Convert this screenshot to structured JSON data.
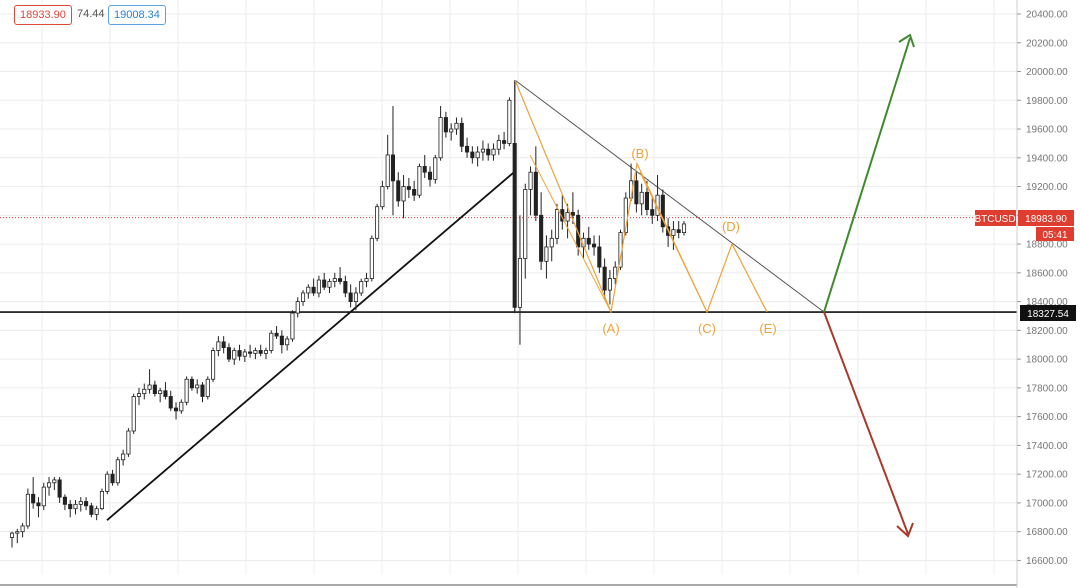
{
  "header": {
    "bid": "18933.90",
    "spread": "74.44",
    "ask": "19008.34"
  },
  "price_scale": {
    "ticks": [
      "20400.00",
      "20200.00",
      "20000.00",
      "19800.00",
      "19600.00",
      "19400.00",
      "19200.00",
      "19000.00",
      "18800.00",
      "18600.00",
      "18400.00",
      "18200.00",
      "18000.00",
      "17800.00",
      "17600.00",
      "17400.00",
      "17200.00",
      "17000.00",
      "16800.00",
      "16600.00"
    ],
    "symbol_tag": "BTCUSD",
    "current_price": "18983.90",
    "countdown": "05:41",
    "level_label": "18327.54"
  },
  "colors": {
    "accent_red": "#df3d2f",
    "wave_orange": "#eea23a",
    "up_arrow": "#3f8a2d",
    "down_arrow": "#a83a2a",
    "line_black": "#111111"
  },
  "chart_data": {
    "type": "candlestick",
    "symbol": "BTCUSD",
    "ylim": [
      16600,
      20400
    ],
    "current_price": 18983.9,
    "horizontal_level": 18327.54,
    "wave_labels": [
      "(A)",
      "(B)",
      "(C)",
      "(D)",
      "(E)"
    ],
    "candles_ohlc": [
      [
        16760,
        16800,
        16690,
        16790
      ],
      [
        16790,
        16820,
        16720,
        16800
      ],
      [
        16800,
        16860,
        16760,
        16840
      ],
      [
        16840,
        17100,
        16820,
        17060
      ],
      [
        17060,
        17180,
        16960,
        17000
      ],
      [
        17000,
        17040,
        16900,
        16980
      ],
      [
        16980,
        17140,
        16950,
        17110
      ],
      [
        17110,
        17180,
        17050,
        17140
      ],
      [
        17140,
        17180,
        17090,
        17160
      ],
      [
        17160,
        17180,
        17000,
        17040
      ],
      [
        17040,
        17060,
        16950,
        16990
      ],
      [
        16990,
        17020,
        16900,
        16960
      ],
      [
        16960,
        17020,
        16920,
        16990
      ],
      [
        16990,
        17040,
        16940,
        17010
      ],
      [
        17010,
        17040,
        16950,
        16980
      ],
      [
        16980,
        17000,
        16900,
        16920
      ],
      [
        16920,
        16980,
        16880,
        16960
      ],
      [
        16960,
        17100,
        16950,
        17080
      ],
      [
        17080,
        17220,
        17060,
        17200
      ],
      [
        17200,
        17230,
        17120,
        17140
      ],
      [
        17140,
        17320,
        17120,
        17300
      ],
      [
        17300,
        17370,
        17260,
        17340
      ],
      [
        17340,
        17520,
        17320,
        17500
      ],
      [
        17500,
        17760,
        17480,
        17740
      ],
      [
        17740,
        17800,
        17680,
        17760
      ],
      [
        17760,
        17830,
        17720,
        17790
      ],
      [
        17790,
        17930,
        17760,
        17820
      ],
      [
        17820,
        17850,
        17740,
        17760
      ],
      [
        17760,
        17800,
        17700,
        17780
      ],
      [
        17780,
        17840,
        17720,
        17740
      ],
      [
        17740,
        17780,
        17640,
        17660
      ],
      [
        17660,
        17700,
        17580,
        17640
      ],
      [
        17640,
        17720,
        17620,
        17700
      ],
      [
        17700,
        17880,
        17680,
        17860
      ],
      [
        17860,
        17880,
        17780,
        17800
      ],
      [
        17800,
        17860,
        17760,
        17820
      ],
      [
        17820,
        17840,
        17700,
        17740
      ],
      [
        17740,
        17880,
        17720,
        17860
      ],
      [
        17860,
        18080,
        17840,
        18060
      ],
      [
        18060,
        18160,
        18020,
        18120
      ],
      [
        18120,
        18160,
        18040,
        18080
      ],
      [
        18080,
        18110,
        17980,
        18000
      ],
      [
        18000,
        18080,
        17960,
        18060
      ],
      [
        18060,
        18100,
        17990,
        18020
      ],
      [
        18020,
        18070,
        17980,
        18050
      ],
      [
        18050,
        18100,
        18010,
        18040
      ],
      [
        18040,
        18080,
        18000,
        18060
      ],
      [
        18060,
        18100,
        18020,
        18040
      ],
      [
        18040,
        18080,
        18000,
        18060
      ],
      [
        18060,
        18200,
        18040,
        18180
      ],
      [
        18180,
        18230,
        18140,
        18160
      ],
      [
        18160,
        18200,
        18040,
        18100
      ],
      [
        18100,
        18160,
        18060,
        18140
      ],
      [
        18140,
        18340,
        18120,
        18320
      ],
      [
        18320,
        18430,
        18290,
        18400
      ],
      [
        18400,
        18480,
        18370,
        18460
      ],
      [
        18460,
        18520,
        18420,
        18500
      ],
      [
        18500,
        18560,
        18440,
        18460
      ],
      [
        18460,
        18580,
        18430,
        18550
      ],
      [
        18550,
        18600,
        18480,
        18500
      ],
      [
        18500,
        18560,
        18460,
        18540
      ],
      [
        18540,
        18600,
        18500,
        18560
      ],
      [
        18560,
        18640,
        18520,
        18540
      ],
      [
        18540,
        18580,
        18430,
        18460
      ],
      [
        18460,
        18520,
        18360,
        18400
      ],
      [
        18400,
        18500,
        18340,
        18460
      ],
      [
        18460,
        18560,
        18440,
        18540
      ],
      [
        18540,
        18600,
        18500,
        18560
      ],
      [
        18560,
        18860,
        18540,
        18840
      ],
      [
        18840,
        19080,
        18820,
        19060
      ],
      [
        19060,
        19240,
        19040,
        19200
      ],
      [
        19200,
        19560,
        19180,
        19420
      ],
      [
        19420,
        19760,
        19000,
        19240
      ],
      [
        19240,
        19300,
        19060,
        19100
      ],
      [
        19100,
        19280,
        18980,
        19200
      ],
      [
        19200,
        19260,
        19120,
        19180
      ],
      [
        19180,
        19240,
        19100,
        19140
      ],
      [
        19140,
        19360,
        19120,
        19340
      ],
      [
        19340,
        19420,
        19260,
        19300
      ],
      [
        19300,
        19340,
        19200,
        19250
      ],
      [
        19250,
        19420,
        19220,
        19400
      ],
      [
        19400,
        19760,
        19380,
        19680
      ],
      [
        19680,
        19720,
        19540,
        19580
      ],
      [
        19580,
        19640,
        19520,
        19600
      ],
      [
        19600,
        19680,
        19560,
        19640
      ],
      [
        19640,
        19680,
        19440,
        19480
      ],
      [
        19480,
        19540,
        19400,
        19440
      ],
      [
        19440,
        19480,
        19360,
        19400
      ],
      [
        19400,
        19480,
        19340,
        19440
      ],
      [
        19440,
        19520,
        19380,
        19460
      ],
      [
        19460,
        19500,
        19380,
        19420
      ],
      [
        19420,
        19500,
        19380,
        19460
      ],
      [
        19460,
        19560,
        19420,
        19520
      ],
      [
        19520,
        19580,
        19460,
        19500
      ],
      [
        19500,
        19820,
        19480,
        19800
      ],
      [
        19500,
        19940,
        18320,
        18360
      ],
      [
        18360,
        19000,
        18100,
        18700
      ],
      [
        18700,
        19220,
        18560,
        19180
      ],
      [
        19180,
        19340,
        19000,
        19300
      ],
      [
        19300,
        19480,
        18960,
        19000
      ],
      [
        19000,
        19160,
        18620,
        18680
      ],
      [
        18680,
        18860,
        18560,
        18780
      ],
      [
        18780,
        18900,
        18680,
        18840
      ],
      [
        18840,
        19080,
        18800,
        19040
      ],
      [
        19040,
        19140,
        18900,
        18960
      ],
      [
        18960,
        19080,
        18840,
        19020
      ],
      [
        19020,
        19160,
        18940,
        19000
      ],
      [
        19000,
        19040,
        18720,
        18780
      ],
      [
        18780,
        18880,
        18700,
        18840
      ],
      [
        18840,
        18920,
        18760,
        18800
      ],
      [
        18800,
        18860,
        18720,
        18780
      ],
      [
        18780,
        18860,
        18600,
        18640
      ],
      [
        18640,
        18700,
        18420,
        18480
      ],
      [
        18480,
        18620,
        18380,
        18560
      ],
      [
        18560,
        18680,
        18520,
        18640
      ],
      [
        18640,
        18900,
        18620,
        18880
      ],
      [
        18880,
        19160,
        18860,
        19120
      ],
      [
        19120,
        19360,
        19100,
        19240
      ],
      [
        19240,
        19300,
        19020,
        19080
      ],
      [
        19080,
        19220,
        19000,
        19160
      ],
      [
        19160,
        19240,
        19000,
        19040
      ],
      [
        19040,
        19120,
        18940,
        19000
      ],
      [
        19000,
        19280,
        18960,
        19140
      ],
      [
        19140,
        19180,
        18880,
        18920
      ],
      [
        18920,
        18980,
        18780,
        18860
      ],
      [
        18860,
        18960,
        18760,
        18900
      ],
      [
        18900,
        18960,
        18840,
        18880
      ],
      [
        18880,
        18960,
        18860,
        18940
      ]
    ]
  }
}
